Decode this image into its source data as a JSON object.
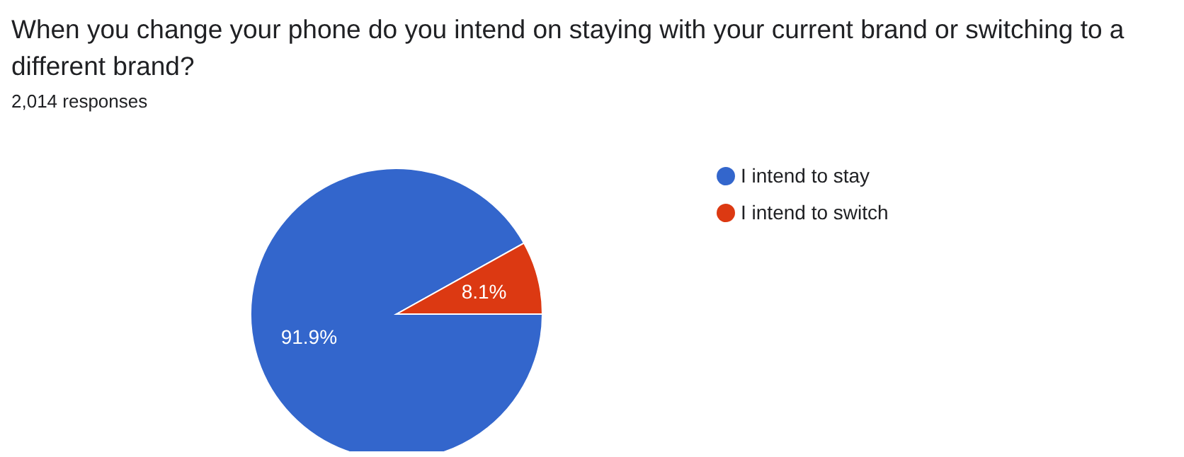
{
  "chart_data": {
    "type": "pie",
    "title": "When you change your phone do you intend on staying with your current brand or switching to a different brand?",
    "subtitle": "2,014 responses",
    "categories": [
      "I intend to stay",
      "I intend to switch"
    ],
    "values": [
      91.9,
      8.1
    ],
    "colors": [
      "#3366cc",
      "#dc3912"
    ],
    "value_labels": [
      "91.9%",
      "8.1%"
    ],
    "legend": "right"
  }
}
